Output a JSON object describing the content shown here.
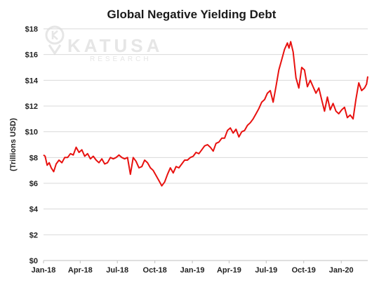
{
  "watermark": {
    "brand": "KATUSA",
    "sub": "RESEARCH"
  },
  "chart_data": {
    "type": "line",
    "title": "Global Negative Yielding Debt",
    "xlabel": "",
    "ylabel": "(Trillions USD)",
    "ylim": [
      0,
      18
    ],
    "xlim": [
      "2018-01-01",
      "2020-03-06"
    ],
    "y_ticks": [
      0,
      2,
      4,
      6,
      8,
      10,
      12,
      14,
      16,
      18
    ],
    "y_tick_labels": [
      "$0",
      "$2",
      "$4",
      "$6",
      "$8",
      "$10",
      "$12",
      "$14",
      "$16",
      "$18"
    ],
    "x_ticks": [
      "2018-01-01",
      "2018-04-01",
      "2018-07-01",
      "2018-10-01",
      "2019-01-01",
      "2019-04-01",
      "2019-07-01",
      "2019-10-01",
      "2020-01-01"
    ],
    "x_tick_labels": [
      "Jan-18",
      "Apr-18",
      "Jul-18",
      "Oct-18",
      "Jan-19",
      "Apr-19",
      "Jul-19",
      "Oct-19",
      "Jan-20"
    ],
    "grid": true,
    "legend": "none",
    "line_color": "#e8110f",
    "series": [
      {
        "x": [
          "2018-01-01",
          "2018-01-05",
          "2018-01-10",
          "2018-01-15",
          "2018-01-20",
          "2018-01-26",
          "2018-02-01",
          "2018-02-08",
          "2018-02-15",
          "2018-02-22",
          "2018-03-01",
          "2018-03-08",
          "2018-03-15",
          "2018-03-22",
          "2018-03-29",
          "2018-04-05",
          "2018-04-12",
          "2018-04-19",
          "2018-04-26",
          "2018-05-03",
          "2018-05-10",
          "2018-05-17",
          "2018-05-24",
          "2018-05-31",
          "2018-06-07",
          "2018-06-14",
          "2018-06-21",
          "2018-06-28",
          "2018-07-05",
          "2018-07-12",
          "2018-07-19",
          "2018-07-26",
          "2018-08-02",
          "2018-08-09",
          "2018-08-16",
          "2018-08-23",
          "2018-08-30",
          "2018-09-06",
          "2018-09-13",
          "2018-09-20",
          "2018-09-27",
          "2018-10-04",
          "2018-10-11",
          "2018-10-18",
          "2018-10-25",
          "2018-11-01",
          "2018-11-08",
          "2018-11-15",
          "2018-11-22",
          "2018-11-29",
          "2018-12-06",
          "2018-12-13",
          "2018-12-20",
          "2018-12-27",
          "2019-01-03",
          "2019-01-10",
          "2019-01-17",
          "2019-01-24",
          "2019-01-31",
          "2019-02-07",
          "2019-02-14",
          "2019-02-21",
          "2019-02-28",
          "2019-03-07",
          "2019-03-14",
          "2019-03-21",
          "2019-03-28",
          "2019-04-04",
          "2019-04-11",
          "2019-04-18",
          "2019-04-25",
          "2019-05-02",
          "2019-05-09",
          "2019-05-16",
          "2019-05-23",
          "2019-05-30",
          "2019-06-06",
          "2019-06-13",
          "2019-06-20",
          "2019-06-27",
          "2019-07-04",
          "2019-07-11",
          "2019-07-18",
          "2019-07-25",
          "2019-08-01",
          "2019-08-08",
          "2019-08-15",
          "2019-08-22",
          "2019-08-26",
          "2019-08-30",
          "2019-09-05",
          "2019-09-12",
          "2019-09-19",
          "2019-09-26",
          "2019-10-03",
          "2019-10-10",
          "2019-10-17",
          "2019-10-24",
          "2019-10-31",
          "2019-11-07",
          "2019-11-14",
          "2019-11-21",
          "2019-11-28",
          "2019-12-05",
          "2019-12-12",
          "2019-12-19",
          "2019-12-26",
          "2020-01-02",
          "2020-01-09",
          "2020-01-16",
          "2020-01-23",
          "2020-01-30",
          "2020-02-06",
          "2020-02-13",
          "2020-02-20",
          "2020-02-27",
          "2020-03-03",
          "2020-03-06"
        ],
        "values": [
          8.2,
          8.1,
          7.4,
          7.6,
          7.2,
          6.9,
          7.5,
          7.8,
          7.6,
          8.0,
          8.0,
          8.3,
          8.2,
          8.8,
          8.4,
          8.6,
          8.1,
          8.3,
          7.9,
          8.1,
          7.8,
          7.6,
          7.9,
          7.5,
          7.6,
          8.0,
          7.9,
          8.0,
          8.2,
          8.0,
          7.9,
          8.0,
          6.7,
          8.0,
          7.7,
          7.2,
          7.3,
          7.8,
          7.6,
          7.2,
          7.0,
          6.6,
          6.2,
          5.8,
          6.1,
          6.7,
          7.2,
          6.8,
          7.3,
          7.2,
          7.5,
          7.8,
          7.8,
          8.0,
          8.1,
          8.4,
          8.3,
          8.6,
          8.9,
          9.0,
          8.8,
          8.5,
          9.1,
          9.2,
          9.5,
          9.5,
          10.1,
          10.3,
          9.9,
          10.2,
          9.6,
          10.0,
          10.1,
          10.5,
          10.7,
          11.0,
          11.4,
          11.8,
          12.3,
          12.5,
          13.0,
          13.2,
          12.3,
          13.5,
          14.8,
          15.6,
          16.4,
          16.9,
          16.5,
          17.0,
          16.2,
          14.2,
          13.4,
          15.0,
          14.8,
          13.5,
          14.0,
          13.5,
          13.0,
          13.4,
          12.5,
          11.6,
          12.7,
          11.7,
          12.2,
          11.6,
          11.4,
          11.7,
          11.9,
          11.1,
          11.3,
          11.0,
          12.5,
          13.8,
          13.2,
          13.4,
          13.7,
          14.3
        ]
      }
    ]
  }
}
